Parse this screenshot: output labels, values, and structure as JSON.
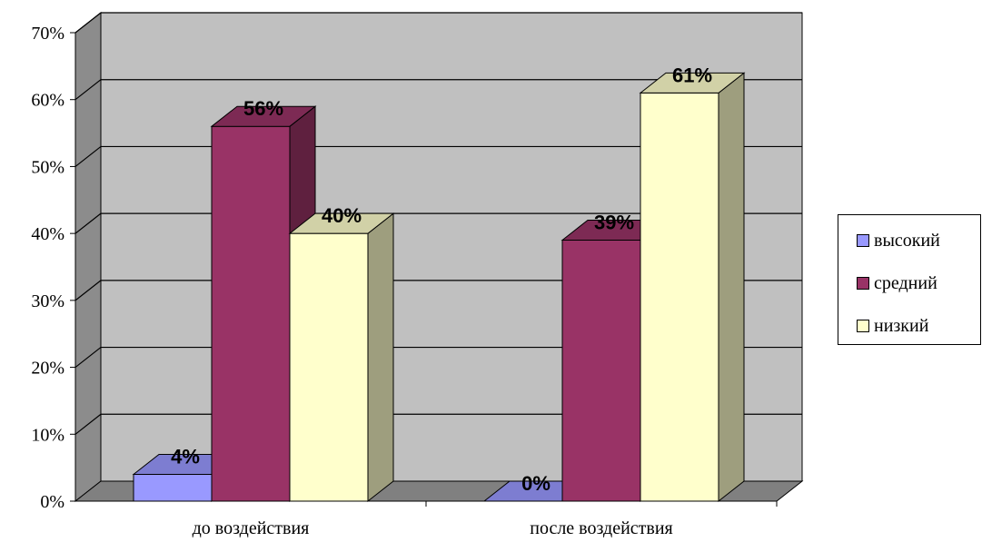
{
  "chart_data": {
    "type": "bar",
    "title": "",
    "xlabel": "",
    "ylabel": "",
    "ylim": [
      0,
      70
    ],
    "y_ticks": [
      "0%",
      "10%",
      "20%",
      "30%",
      "40%",
      "50%",
      "60%",
      "70%"
    ],
    "grid": true,
    "legend_position": "right",
    "categories": [
      "до воздействия",
      "после воздействия"
    ],
    "series": [
      {
        "name": "высокий",
        "values": [
          4,
          0
        ],
        "labels": [
          "4%",
          "0%"
        ],
        "color": "#9999ff"
      },
      {
        "name": "средний",
        "values": [
          56,
          39
        ],
        "labels": [
          "56%",
          "39%"
        ],
        "color": "#993366"
      },
      {
        "name": "низкий",
        "values": [
          40,
          61
        ],
        "labels": [
          "40%",
          "61%"
        ],
        "color": "#ffffcc"
      }
    ],
    "wall_color": "#c0c0c0",
    "floor_color": "#808080"
  }
}
